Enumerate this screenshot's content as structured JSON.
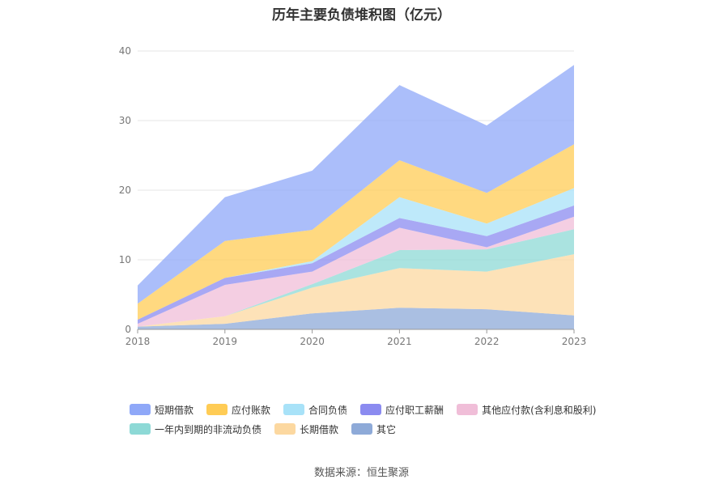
{
  "chart_data": {
    "type": "area",
    "stacked": true,
    "title": "历年主要负债堆积图（亿元）",
    "categories": [
      "2018",
      "2019",
      "2020",
      "2021",
      "2022",
      "2023"
    ],
    "ylim": [
      0,
      40
    ],
    "yticks": [
      0,
      10,
      20,
      30,
      40
    ],
    "grid": true,
    "legend_position": "bottom",
    "series": [
      {
        "name": "其它",
        "color": "#8eaad8",
        "values": [
          0.4,
          0.8,
          2.3,
          3.1,
          2.9,
          2.0
        ]
      },
      {
        "name": "长期借款",
        "color": "#fcd8a0",
        "values": [
          0.0,
          1.1,
          3.7,
          5.7,
          5.4,
          8.8
        ]
      },
      {
        "name": "一年内到期的非流动负债",
        "color": "#8dd9d6",
        "values": [
          0.0,
          0.0,
          0.5,
          2.6,
          3.2,
          3.6
        ]
      },
      {
        "name": "其他应付款(含利息和股利)",
        "color": "#f0bed8",
        "values": [
          0.4,
          4.5,
          1.8,
          3.2,
          0.3,
          1.8
        ]
      },
      {
        "name": "应付职工薪酬",
        "color": "#8b8bf0",
        "values": [
          0.6,
          1.0,
          1.2,
          1.4,
          1.6,
          1.6
        ]
      },
      {
        "name": "合同负债",
        "color": "#a8e2f8",
        "values": [
          0.0,
          0.0,
          0.3,
          3.0,
          1.8,
          2.5
        ]
      },
      {
        "name": "应付账款",
        "color": "#ffcc55",
        "values": [
          2.3,
          5.3,
          4.5,
          5.3,
          4.4,
          6.3
        ]
      },
      {
        "name": "短期借款",
        "color": "#8fa8f8",
        "values": [
          2.6,
          6.3,
          8.5,
          10.8,
          9.7,
          11.4
        ]
      }
    ]
  },
  "legend_rows": [
    [
      "短期借款",
      "应付账款",
      "合同负债",
      "应付职工薪酬",
      "其他应付款(含利息和股利)"
    ],
    [
      "一年内到期的非流动负债",
      "长期借款",
      "其它"
    ]
  ],
  "source": "数据来源：恒生聚源"
}
